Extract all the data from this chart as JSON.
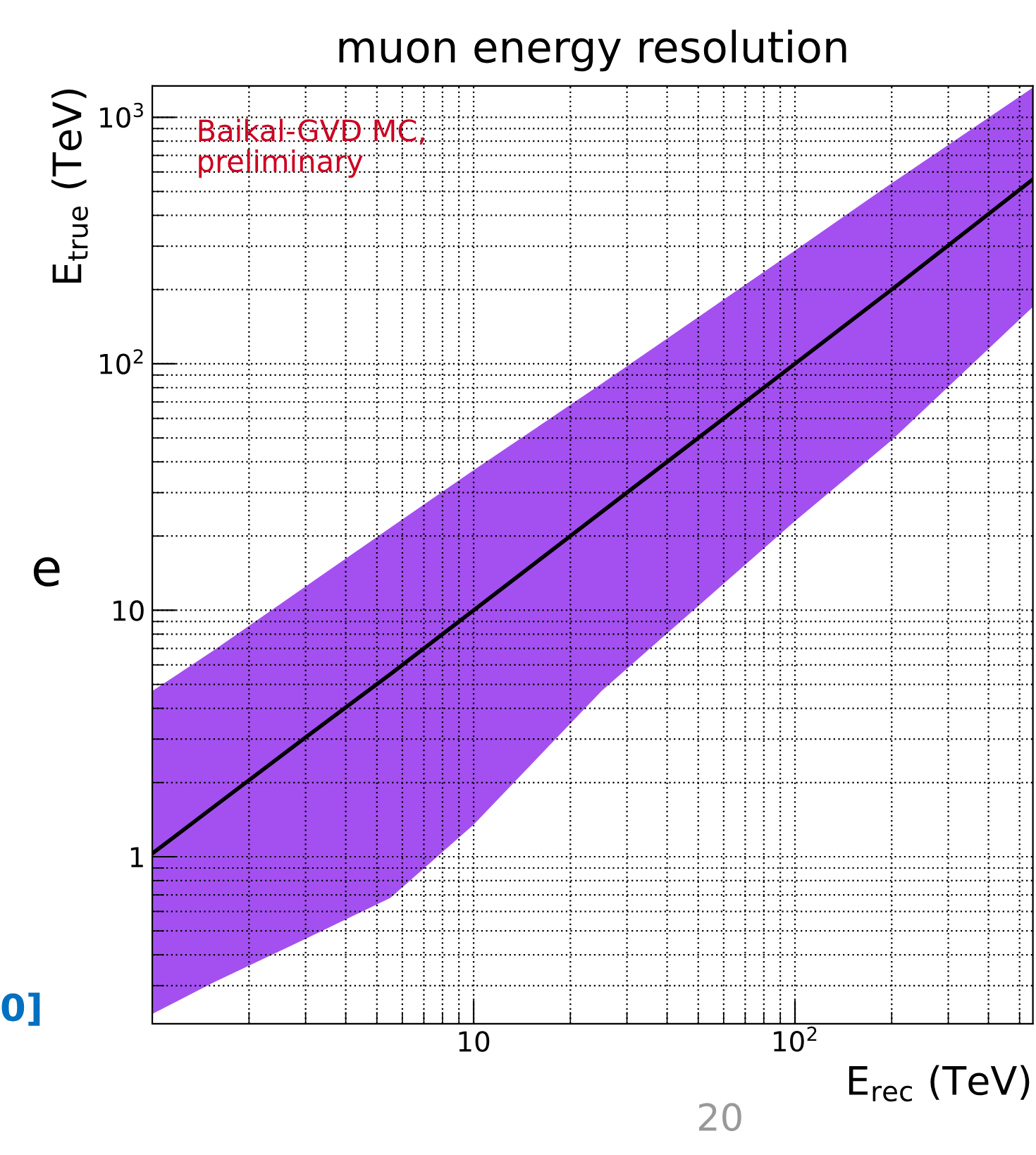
{
  "chart_data": {
    "type": "line",
    "title": "muon energy resolution",
    "xlabel": "E$_{rec}$ (TeV)",
    "ylabel": "E$_{true}$ (TeV)",
    "annotations": [
      "Baikal-GVD MC,\npreliminary",
      "e",
      "0]",
      "20"
    ],
    "log": "xy",
    "xlim": [
      1,
      550
    ],
    "ylim": [
      0.21,
      1340
    ],
    "xticks": [
      10,
      {
        "value": 100,
        "label": "10$^{2}$"
      }
    ],
    "yticks": [
      1,
      10,
      {
        "value": 100,
        "label": "10$^{2}$"
      },
      {
        "value": 1000,
        "label": "10$^{3}$"
      }
    ],
    "grid": true,
    "legend": false,
    "marker": "none",
    "line_style": "solid",
    "series": [
      {
        "color": "#000000",
        "x": [
          1,
          1.56,
          2.95,
          5.5,
          10,
          25,
          100,
          200,
          550
        ],
        "values": [
          1.03,
          1.6,
          3,
          5.5,
          10,
          25,
          100,
          200,
          560
        ],
        "lower": [
          0.23,
          0.31,
          0.46,
          0.68,
          1.35,
          4.7,
          23,
          49,
          170
        ],
        "upper": [
          4.7,
          6.9,
          12.3,
          21.6,
          37,
          83,
          288,
          540,
          1320
        ]
      }
    ]
  }
}
